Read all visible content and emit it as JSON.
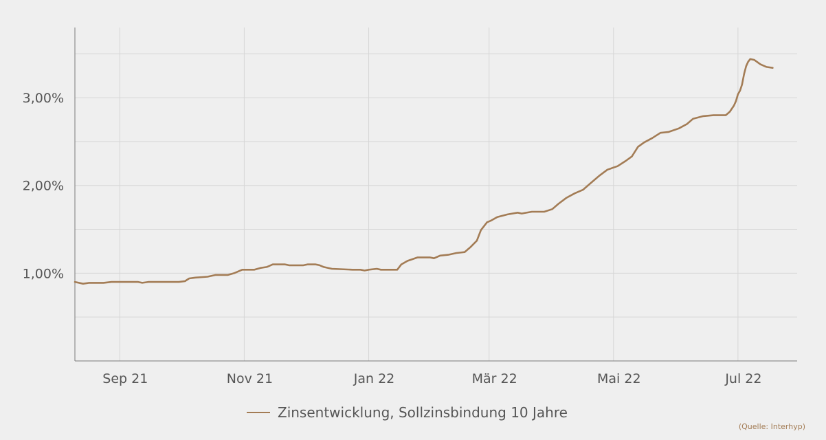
{
  "source_label": "(Quelle: Interhyp)",
  "colors": {
    "background": "#efefef",
    "line": "#a37c55",
    "grid": "#d6d6d6",
    "axis": "#7a7a7a",
    "tick_text": "#555555",
    "source_text": "#a37c55"
  },
  "chart_data": {
    "type": "line",
    "title": "",
    "xlabel": "",
    "ylabel": "",
    "x_axis_type": "date",
    "xlim": [
      "2021-08-10",
      "2022-07-30"
    ],
    "ylim": [
      0.0,
      3.8
    ],
    "y_ticks": [
      1.0,
      2.0,
      3.0
    ],
    "y_tick_labels": [
      "1,00%",
      "2,00%",
      "3,00%"
    ],
    "y_minor_gridlines": [
      0.5,
      1.0,
      1.5,
      2.0,
      2.5,
      3.0,
      3.5
    ],
    "x_ticks": [
      "2021-09-01",
      "2021-11-01",
      "2022-01-01",
      "2022-03-01",
      "2022-05-01",
      "2022-07-01"
    ],
    "x_tick_labels": [
      "Sep 21",
      "Nov 21",
      "Jan 22",
      "Mär 22",
      "Mai 22",
      "Jul 22"
    ],
    "grid": true,
    "legend_position": "bottom-center",
    "series": [
      {
        "name": "Zinsentwicklung, Sollzinsbindung 10 Jahre",
        "points": [
          [
            "2021-08-10",
            0.9
          ],
          [
            "2021-08-14",
            0.88
          ],
          [
            "2021-08-17",
            0.89
          ],
          [
            "2021-08-21",
            0.89
          ],
          [
            "2021-08-24",
            0.89
          ],
          [
            "2021-08-28",
            0.9
          ],
          [
            "2021-09-03",
            0.9
          ],
          [
            "2021-09-07",
            0.9
          ],
          [
            "2021-09-10",
            0.9
          ],
          [
            "2021-09-12",
            0.89
          ],
          [
            "2021-09-15",
            0.9
          ],
          [
            "2021-09-24",
            0.9
          ],
          [
            "2021-09-30",
            0.9
          ],
          [
            "2021-10-03",
            0.91
          ],
          [
            "2021-10-05",
            0.94
          ],
          [
            "2021-10-08",
            0.95
          ],
          [
            "2021-10-14",
            0.96
          ],
          [
            "2021-10-18",
            0.98
          ],
          [
            "2021-10-24",
            0.98
          ],
          [
            "2021-10-27",
            1.0
          ],
          [
            "2021-10-31",
            1.04
          ],
          [
            "2021-11-06",
            1.04
          ],
          [
            "2021-11-09",
            1.06
          ],
          [
            "2021-11-12",
            1.07
          ],
          [
            "2021-11-15",
            1.1
          ],
          [
            "2021-11-21",
            1.1
          ],
          [
            "2021-11-23",
            1.09
          ],
          [
            "2021-11-30",
            1.09
          ],
          [
            "2021-12-02",
            1.1
          ],
          [
            "2021-12-06",
            1.1
          ],
          [
            "2021-12-08",
            1.09
          ],
          [
            "2021-12-10",
            1.07
          ],
          [
            "2021-12-14",
            1.05
          ],
          [
            "2021-12-24",
            1.04
          ],
          [
            "2021-12-28",
            1.04
          ],
          [
            "2021-12-30",
            1.03
          ],
          [
            "2022-01-01",
            1.04
          ],
          [
            "2022-01-05",
            1.05
          ],
          [
            "2022-01-07",
            1.04
          ],
          [
            "2022-01-12",
            1.04
          ],
          [
            "2022-01-15",
            1.04
          ],
          [
            "2022-01-17",
            1.1
          ],
          [
            "2022-01-20",
            1.14
          ],
          [
            "2022-01-25",
            1.18
          ],
          [
            "2022-01-31",
            1.18
          ],
          [
            "2022-02-02",
            1.17
          ],
          [
            "2022-02-05",
            1.2
          ],
          [
            "2022-02-09",
            1.21
          ],
          [
            "2022-02-13",
            1.23
          ],
          [
            "2022-02-17",
            1.24
          ],
          [
            "2022-02-20",
            1.3
          ],
          [
            "2022-02-23",
            1.37
          ],
          [
            "2022-02-25",
            1.49
          ],
          [
            "2022-02-28",
            1.58
          ],
          [
            "2022-03-02",
            1.6
          ],
          [
            "2022-03-05",
            1.64
          ],
          [
            "2022-03-10",
            1.67
          ],
          [
            "2022-03-15",
            1.69
          ],
          [
            "2022-03-17",
            1.68
          ],
          [
            "2022-03-22",
            1.7
          ],
          [
            "2022-03-28",
            1.7
          ],
          [
            "2022-04-01",
            1.73
          ],
          [
            "2022-04-04",
            1.79
          ],
          [
            "2022-04-08",
            1.86
          ],
          [
            "2022-04-12",
            1.91
          ],
          [
            "2022-04-16",
            1.95
          ],
          [
            "2022-04-20",
            2.03
          ],
          [
            "2022-04-24",
            2.11
          ],
          [
            "2022-04-28",
            2.18
          ],
          [
            "2022-05-03",
            2.22
          ],
          [
            "2022-05-07",
            2.28
          ],
          [
            "2022-05-10",
            2.33
          ],
          [
            "2022-05-13",
            2.44
          ],
          [
            "2022-05-16",
            2.49
          ],
          [
            "2022-05-20",
            2.54
          ],
          [
            "2022-05-24",
            2.6
          ],
          [
            "2022-05-28",
            2.61
          ],
          [
            "2022-06-02",
            2.65
          ],
          [
            "2022-06-06",
            2.7
          ],
          [
            "2022-06-09",
            2.76
          ],
          [
            "2022-06-14",
            2.79
          ],
          [
            "2022-06-19",
            2.8
          ],
          [
            "2022-06-23",
            2.8
          ],
          [
            "2022-06-25",
            2.8
          ],
          [
            "2022-06-27",
            2.84
          ],
          [
            "2022-06-29",
            2.91
          ],
          [
            "2022-06-30",
            2.96
          ],
          [
            "2022-07-01",
            3.04
          ],
          [
            "2022-07-02",
            3.08
          ],
          [
            "2022-07-03",
            3.15
          ],
          [
            "2022-07-04",
            3.27
          ],
          [
            "2022-07-05",
            3.36
          ],
          [
            "2022-07-06",
            3.41
          ],
          [
            "2022-07-07",
            3.44
          ],
          [
            "2022-07-09",
            3.43
          ],
          [
            "2022-07-12",
            3.38
          ],
          [
            "2022-07-15",
            3.35
          ],
          [
            "2022-07-18",
            3.34
          ]
        ]
      }
    ]
  }
}
